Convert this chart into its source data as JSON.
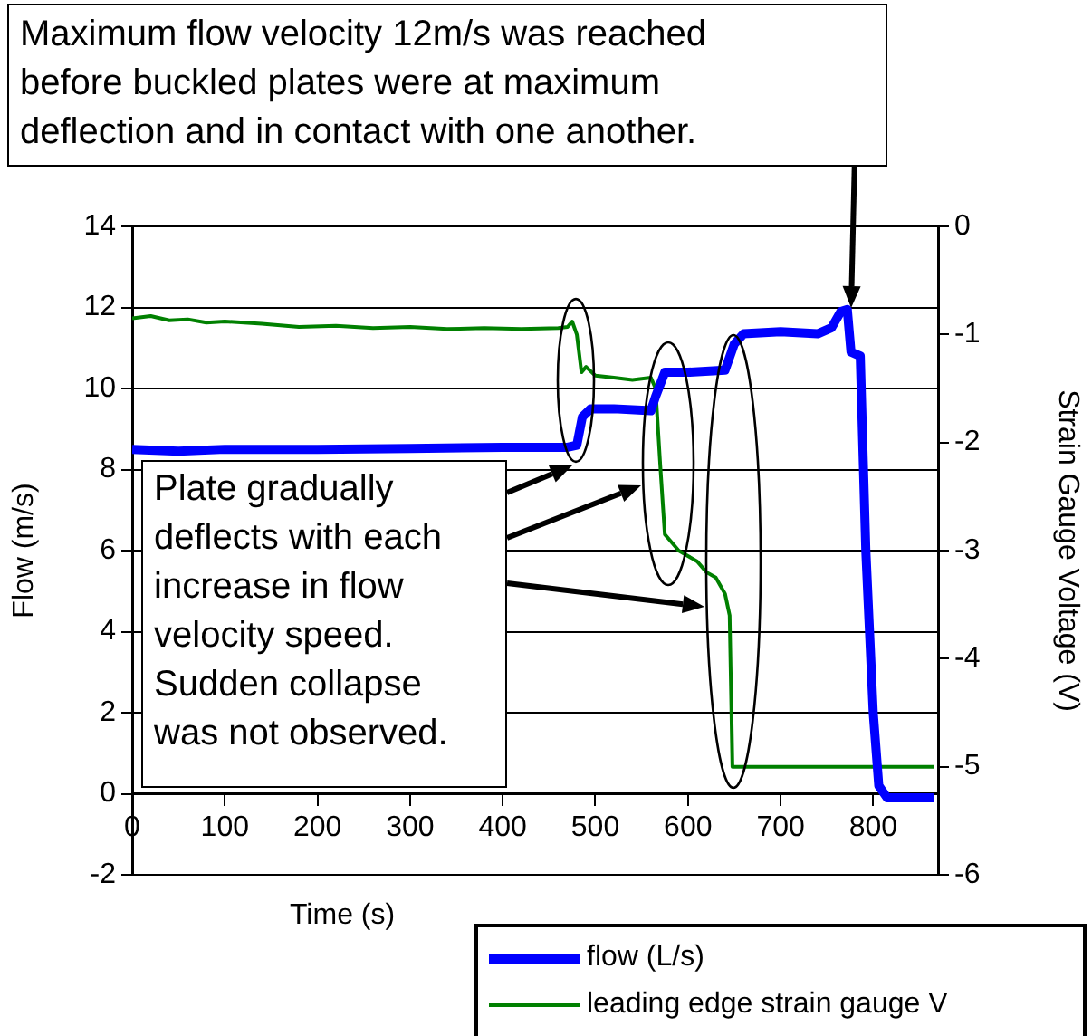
{
  "chart_data": {
    "type": "line",
    "xlabel": "Time (s)",
    "ylabel": "Flow (m/s)",
    "y2label": "Strain Gauge Voltage (V)",
    "xlim": [
      0,
      870
    ],
    "xticks": [
      0,
      100,
      200,
      300,
      400,
      500,
      600,
      700,
      800
    ],
    "ylim": [
      -2,
      14
    ],
    "yticks": [
      -2,
      0,
      2,
      4,
      6,
      8,
      10,
      12,
      14
    ],
    "y2lim": [
      -6,
      0
    ],
    "y2ticks": [
      -6,
      -5,
      -4,
      -3,
      -2,
      -1,
      0
    ],
    "grid": "y",
    "legend": "bottom right",
    "marker": "none",
    "annotations": [
      "Maximum flow velocity 12m/s was reached before buckled plates were at maximum deflection and in contact with one another.",
      "Plate gradually deflects with each increase in flow velocity speed. Sudden collapse was not observed."
    ],
    "series": [
      {
        "name": "flow (L/s)",
        "color": "#0000ff",
        "x": [
          0,
          50,
          100,
          200,
          300,
          400,
          470,
          480,
          486,
          495,
          520,
          560,
          565,
          575,
          600,
          640,
          650,
          660,
          700,
          740,
          755,
          765,
          772,
          776,
          786,
          792,
          800,
          806,
          815,
          866
        ],
        "values": [
          8.5,
          8.45,
          8.5,
          8.5,
          8.52,
          8.55,
          8.55,
          8.6,
          9.3,
          9.5,
          9.5,
          9.45,
          9.8,
          10.4,
          10.4,
          10.45,
          11.1,
          11.35,
          11.4,
          11.35,
          11.5,
          11.9,
          11.95,
          10.9,
          10.8,
          6,
          2,
          0.2,
          -0.1,
          -0.1
        ]
      },
      {
        "name": "leading edge strain gauge V",
        "color": "#008000",
        "axis": "y2",
        "x": [
          0,
          20,
          40,
          60,
          80,
          100,
          140,
          180,
          220,
          260,
          300,
          340,
          380,
          420,
          460,
          470,
          475,
          480,
          485,
          490,
          500,
          520,
          540,
          560,
          565,
          570,
          575,
          580,
          590,
          600,
          610,
          620,
          630,
          640,
          645,
          648,
          700,
          800,
          866
        ],
        "values": [
          -0.85,
          -0.83,
          -0.87,
          -0.86,
          -0.89,
          -0.88,
          -0.9,
          -0.93,
          -0.92,
          -0.94,
          -0.93,
          -0.95,
          -0.94,
          -0.95,
          -0.94,
          -0.93,
          -0.88,
          -1.0,
          -1.35,
          -1.3,
          -1.38,
          -1.4,
          -1.42,
          -1.4,
          -1.5,
          -2.2,
          -2.85,
          -2.9,
          -3.0,
          -3.05,
          -3.1,
          -3.2,
          -3.25,
          -3.4,
          -3.6,
          -5.0,
          -5.0,
          -5.0,
          -5.0
        ]
      }
    ]
  }
}
